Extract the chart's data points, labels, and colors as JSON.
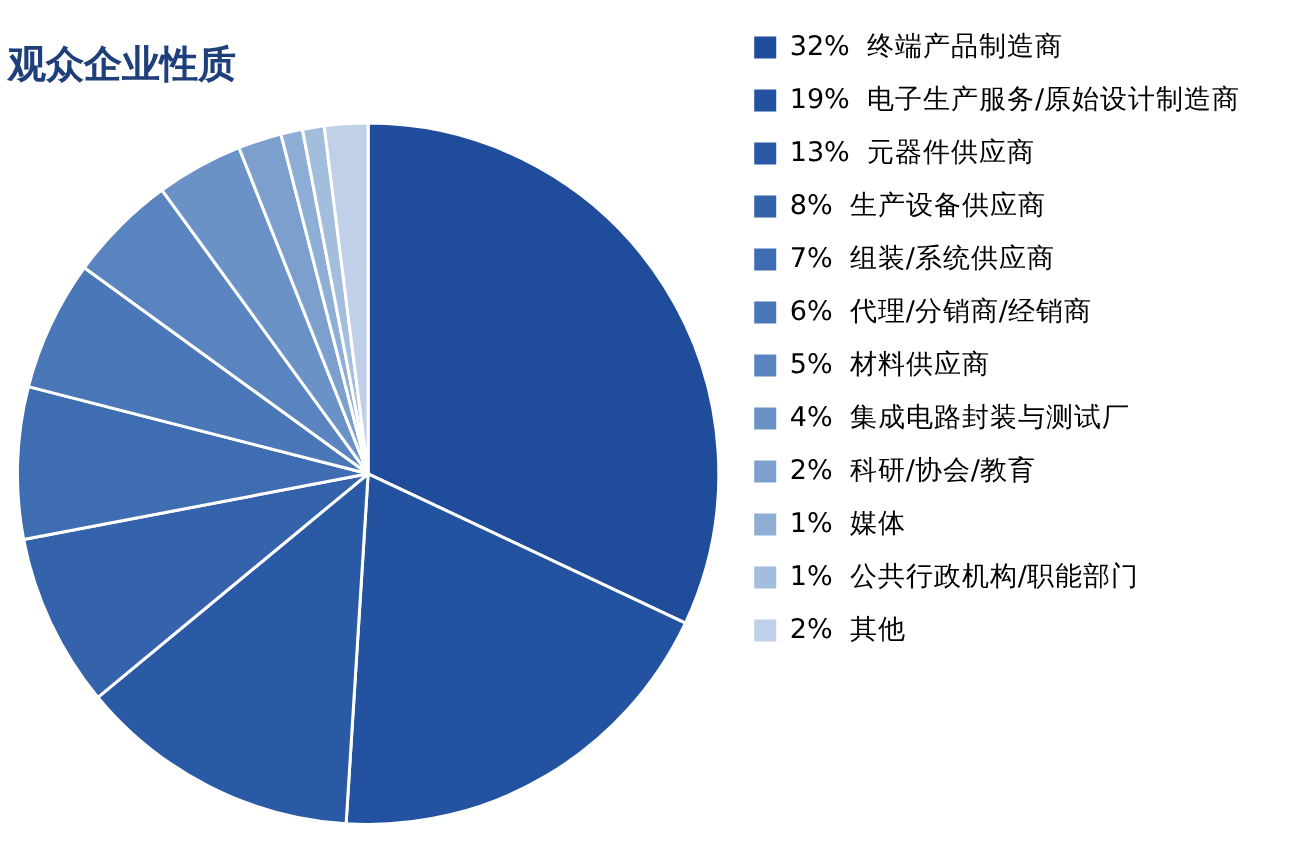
{
  "chart_data": {
    "type": "pie",
    "title": "观众企业性质",
    "categories": [
      "终端产品制造商",
      "电子生产服务/原始设计制造商",
      "元器件供应商",
      "生产设备供应商",
      "组装/系统供应商",
      "代理/分销商/经销商",
      "材料供应商",
      "集成电路封装与测试厂",
      "科研/协会/教育",
      "媒体",
      "公共行政机构/职能部门",
      "其他"
    ],
    "values": [
      32,
      19,
      13,
      8,
      7,
      6,
      5,
      4,
      2,
      1,
      1,
      2
    ],
    "value_labels": [
      "32%",
      "19%",
      "13%",
      "8%",
      "7%",
      "6%",
      "5%",
      "4%",
      "2%",
      "1%",
      "1%",
      "2%"
    ],
    "colors": [
      "#1f4c9b",
      "#2352a0",
      "#2a5aa6",
      "#3563ab",
      "#3f6db1",
      "#4a77b7",
      "#5a84bf",
      "#6a92c6",
      "#7c9fcd",
      "#8eaed5",
      "#a3bddd",
      "#c0d0e8"
    ],
    "legend": "right"
  }
}
